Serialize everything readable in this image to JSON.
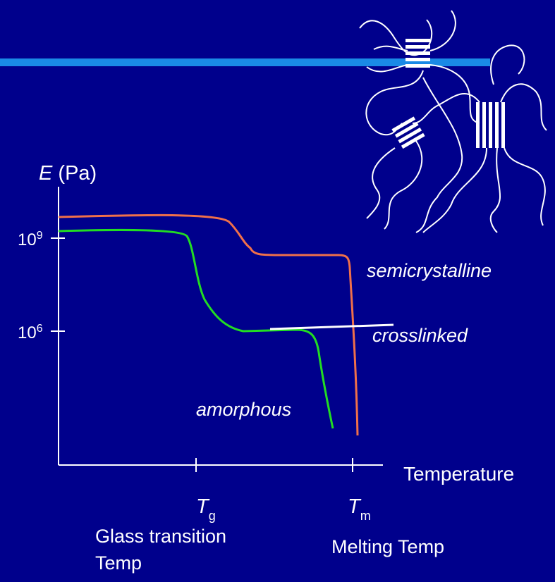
{
  "axis": {
    "y_label": {
      "symbol": "E",
      "unit": "(Pa)"
    },
    "y_ticks": [
      {
        "base": "10",
        "exponent": "9"
      },
      {
        "base": "10",
        "exponent": "6"
      }
    ],
    "x_label": "Temperature"
  },
  "curve_labels": {
    "semicrystalline": "semicrystalline",
    "crosslinked": "crosslinked",
    "amorphous": "amorphous"
  },
  "x_markers": [
    {
      "symbol": "T",
      "subscript": "g",
      "caption_lines": [
        "Glass transition",
        "Temp"
      ]
    },
    {
      "symbol": "T",
      "subscript": "m",
      "caption_lines": [
        "Melting Temp"
      ]
    }
  ]
}
